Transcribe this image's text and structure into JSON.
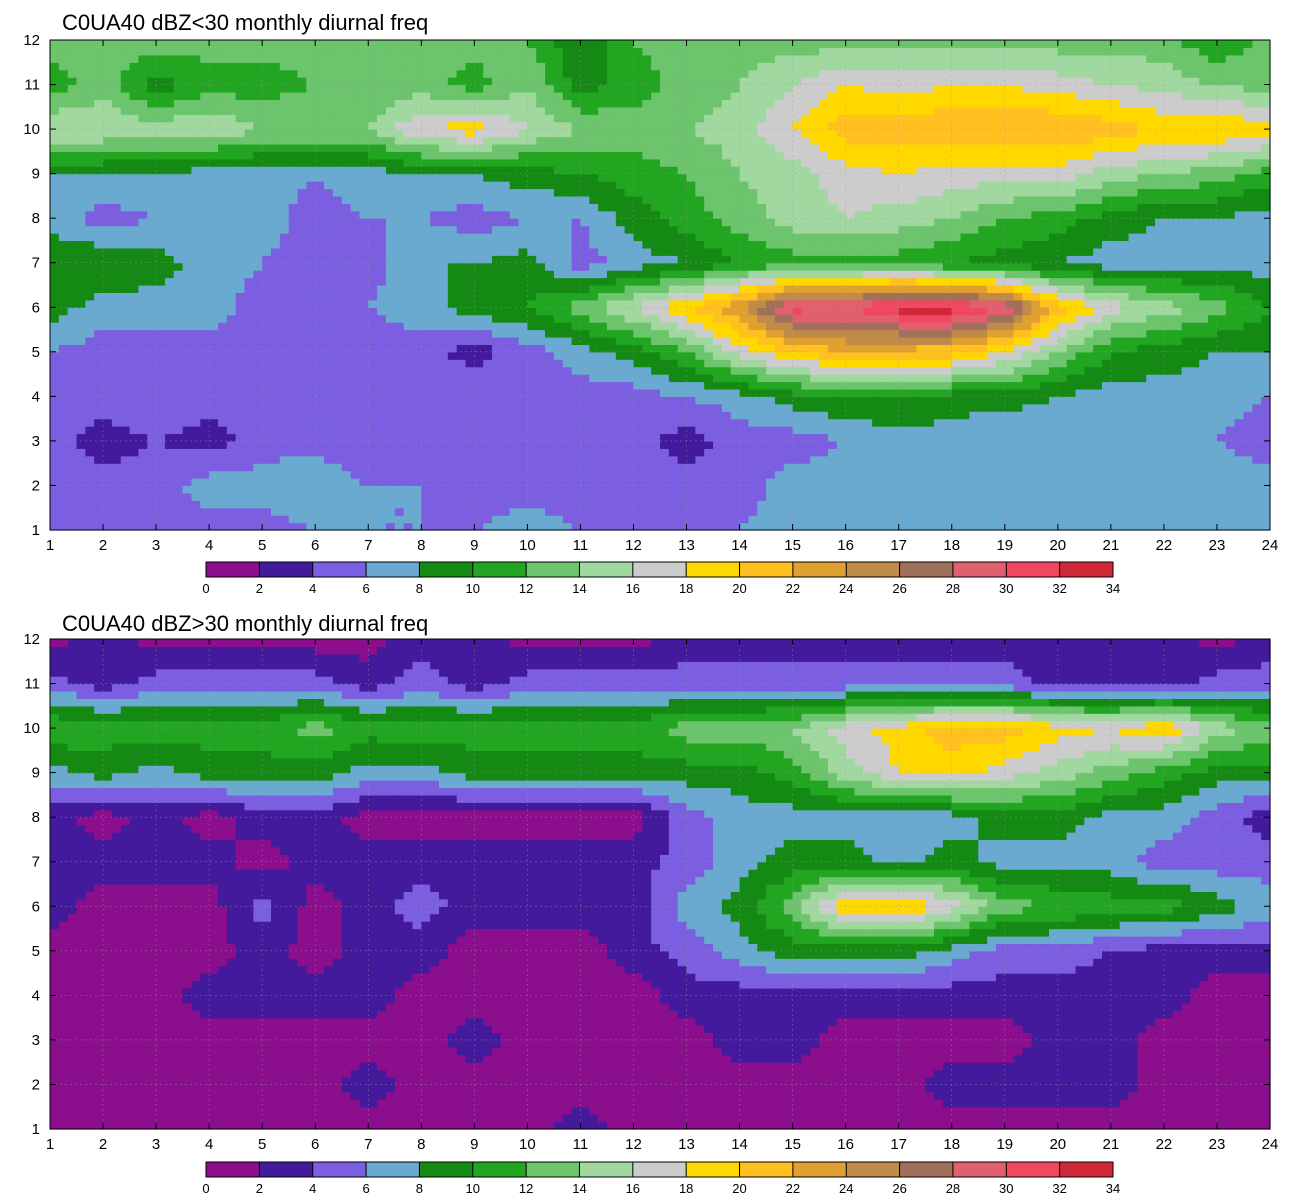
{
  "chart_data": [
    {
      "type": "heatmap",
      "subtype": "filled-contour",
      "title": "C0UA40 dBZ<30 monthly diurnal freq",
      "xlabel": "",
      "ylabel": "",
      "x_ticks": [
        "1",
        "2",
        "3",
        "4",
        "5",
        "6",
        "7",
        "8",
        "9",
        "10",
        "11",
        "12",
        "13",
        "14",
        "15",
        "16",
        "17",
        "18",
        "19",
        "20",
        "21",
        "22",
        "23",
        "24"
      ],
      "y_ticks": [
        "1",
        "2",
        "3",
        "4",
        "5",
        "6",
        "7",
        "8",
        "9",
        "10",
        "11",
        "12"
      ],
      "xlim": [
        1,
        24
      ],
      "ylim": [
        1,
        12
      ],
      "grid": true,
      "rows": [
        {
          "y": 1,
          "values": [
            6,
            6,
            6,
            5,
            5,
            6,
            6,
            6,
            6,
            7,
            6,
            6,
            6,
            6,
            7,
            7,
            6,
            6,
            6,
            6,
            6,
            6,
            6,
            7
          ]
        },
        {
          "y": 2,
          "values": [
            5,
            5,
            5,
            7,
            7,
            8,
            6,
            6,
            5,
            5,
            5,
            5,
            5,
            5,
            7,
            7,
            7,
            7,
            7,
            7,
            7,
            8,
            7,
            7
          ]
        },
        {
          "y": 3,
          "values": [
            5,
            3,
            4,
            3,
            5,
            5,
            4,
            5,
            5,
            5,
            5,
            5,
            3,
            5,
            5,
            6,
            7,
            7,
            6,
            6,
            6,
            6,
            6,
            5
          ]
        },
        {
          "y": 4,
          "values": [
            5,
            5,
            6,
            5,
            6,
            5,
            5,
            5,
            6,
            6,
            5,
            5,
            6,
            7,
            9,
            10,
            10,
            9,
            9,
            8,
            7,
            7,
            7,
            6
          ]
        },
        {
          "y": 5,
          "values": [
            6,
            5,
            5,
            5,
            5,
            5,
            5,
            5,
            3,
            5,
            7,
            9,
            12,
            17,
            20,
            22,
            21,
            21,
            18,
            14,
            10,
            9,
            8,
            8
          ]
        },
        {
          "y": 6,
          "values": [
            9,
            7,
            7,
            7,
            5,
            5,
            6,
            7,
            9,
            10,
            13,
            16,
            20,
            24,
            31,
            30,
            33,
            33,
            30,
            21,
            17,
            15,
            13,
            10
          ]
        },
        {
          "y": 7,
          "values": [
            10,
            10,
            9,
            7,
            6,
            5,
            5,
            8,
            8,
            9,
            5,
            7,
            8,
            10,
            11,
            11,
            11,
            10,
            9,
            8,
            7,
            7,
            7,
            7
          ]
        },
        {
          "y": 8,
          "values": [
            7,
            5,
            6,
            6,
            7,
            5,
            6,
            6,
            5,
            6,
            6,
            9,
            11,
            13,
            15,
            16,
            15,
            14,
            12,
            11,
            9,
            8,
            8,
            7
          ]
        },
        {
          "y": 9,
          "values": [
            8,
            8,
            8,
            7,
            7,
            6,
            7,
            8,
            8,
            9,
            10,
            11,
            12,
            14,
            15,
            17,
            18,
            17,
            17,
            17,
            15,
            14,
            13,
            11
          ]
        },
        {
          "y": 10,
          "values": [
            16,
            16,
            15,
            16,
            14,
            14,
            14,
            18,
            19,
            16,
            14,
            13,
            14,
            15,
            18,
            21,
            21,
            22,
            22,
            22,
            21,
            20,
            20,
            19
          ]
        },
        {
          "y": 11,
          "values": [
            11,
            13,
            9,
            11,
            11,
            12,
            12,
            13,
            11,
            14,
            9,
            11,
            13,
            14,
            16,
            18,
            17,
            18,
            18,
            17,
            16,
            15,
            14,
            13
          ]
        },
        {
          "y": 12,
          "values": [
            13,
            13,
            13,
            13,
            13,
            13,
            13,
            13,
            13,
            12,
            8,
            12,
            13,
            13,
            13,
            13,
            13,
            13,
            13,
            13,
            13,
            13,
            10,
            13
          ]
        }
      ],
      "colorbar": {
        "levels": [
          0,
          2,
          4,
          6,
          8,
          10,
          12,
          14,
          16,
          18,
          20,
          22,
          24,
          26,
          28,
          30,
          32,
          34
        ],
        "tick_labels": [
          "0",
          "2",
          "4",
          "6",
          "8",
          "10",
          "12",
          "14",
          "16",
          "18",
          "20",
          "22",
          "24",
          "26",
          "28",
          "30",
          "32",
          "34"
        ],
        "colors": [
          "#8b0f8c",
          "#441a9c",
          "#7b5fe0",
          "#6aaad0",
          "#148a14",
          "#22a622",
          "#6cc56c",
          "#a0d8a0",
          "#cccccc",
          "#ffd800",
          "#ffc020",
          "#e0a030",
          "#c08a48",
          "#a0705a",
          "#e06070",
          "#f04860",
          "#d02838"
        ]
      }
    },
    {
      "type": "heatmap",
      "subtype": "filled-contour",
      "title": "C0UA40 dBZ>30 monthly diurnal freq",
      "xlabel": "",
      "ylabel": "",
      "x_ticks": [
        "1",
        "2",
        "3",
        "4",
        "5",
        "6",
        "7",
        "8",
        "9",
        "10",
        "11",
        "12",
        "13",
        "14",
        "15",
        "16",
        "17",
        "18",
        "19",
        "20",
        "21",
        "22",
        "23",
        "24"
      ],
      "y_ticks": [
        "1",
        "2",
        "3",
        "4",
        "5",
        "6",
        "7",
        "8",
        "9",
        "10",
        "11",
        "12"
      ],
      "xlim": [
        1,
        24
      ],
      "ylim": [
        1,
        12
      ],
      "grid": true,
      "rows": [
        {
          "y": 1,
          "values": [
            1,
            1,
            1,
            1,
            1,
            1,
            1,
            1,
            1,
            1,
            3,
            1,
            1,
            1,
            1,
            1,
            1,
            1,
            1,
            1,
            1,
            1,
            1,
            1
          ]
        },
        {
          "y": 2,
          "values": [
            1,
            1,
            1,
            1,
            1,
            1,
            3,
            1,
            1,
            1,
            1,
            1,
            1,
            1,
            1,
            1,
            1,
            3,
            3,
            3,
            3,
            1,
            1,
            1
          ]
        },
        {
          "y": 3,
          "values": [
            1,
            1,
            1,
            1,
            1,
            1,
            1,
            1,
            3,
            1,
            1,
            1,
            1,
            3,
            3,
            1,
            1,
            1,
            1,
            3,
            3,
            1,
            1,
            1
          ]
        },
        {
          "y": 4,
          "values": [
            1,
            1,
            1,
            3,
            3,
            3,
            3,
            1,
            1,
            1,
            1,
            1,
            3,
            3,
            3,
            3,
            3,
            3,
            3,
            3,
            3,
            3,
            1,
            1
          ]
        },
        {
          "y": 5,
          "values": [
            1,
            1,
            1,
            1,
            3,
            1,
            3,
            3,
            1,
            1,
            1,
            3,
            5,
            7,
            9,
            9,
            9,
            7,
            5,
            5,
            4,
            3,
            3,
            3
          ]
        },
        {
          "y": 6,
          "values": [
            3,
            1,
            1,
            1,
            5,
            1,
            3,
            5,
            3,
            3,
            3,
            3,
            7,
            9,
            13,
            20,
            21,
            17,
            13,
            12,
            11,
            11,
            9,
            7
          ]
        },
        {
          "y": 7,
          "values": [
            3,
            3,
            3,
            3,
            1,
            3,
            3,
            3,
            3,
            3,
            3,
            3,
            5,
            7,
            9,
            9,
            7,
            9,
            7,
            7,
            7,
            5,
            5,
            5
          ]
        },
        {
          "y": 8,
          "values": [
            3,
            1,
            3,
            1,
            3,
            3,
            1,
            1,
            1,
            1,
            1,
            1,
            5,
            7,
            7,
            7,
            7,
            7,
            9,
            9,
            7,
            7,
            5,
            3
          ]
        },
        {
          "y": 9,
          "values": [
            7,
            9,
            7,
            9,
            9,
            9,
            7,
            7,
            9,
            9,
            9,
            9,
            9,
            9,
            11,
            15,
            18,
            19,
            17,
            15,
            13,
            11,
            9,
            9
          ]
        },
        {
          "y": 10,
          "values": [
            12,
            11,
            11,
            11,
            11,
            13,
            11,
            11,
            11,
            11,
            11,
            11,
            13,
            13,
            14,
            17,
            19,
            21,
            21,
            19,
            18,
            20,
            15,
            13
          ]
        },
        {
          "y": 11,
          "values": [
            5,
            3,
            5,
            5,
            5,
            5,
            3,
            5,
            3,
            5,
            5,
            5,
            5,
            5,
            5,
            5,
            5,
            5,
            5,
            3,
            3,
            3,
            5,
            5
          ]
        },
        {
          "y": 12,
          "values": [
            1,
            3,
            1,
            1,
            1,
            1,
            1,
            3,
            3,
            1,
            1,
            1,
            3,
            3,
            3,
            3,
            3,
            3,
            3,
            3,
            3,
            3,
            1,
            3
          ]
        }
      ],
      "colorbar": {
        "levels": [
          0,
          2,
          4,
          6,
          8,
          10,
          12,
          14,
          16,
          18,
          20,
          22,
          24,
          26,
          28,
          30,
          32,
          34
        ],
        "tick_labels": [
          "0",
          "2",
          "4",
          "6",
          "8",
          "10",
          "12",
          "14",
          "16",
          "18",
          "20",
          "22",
          "24",
          "26",
          "28",
          "30",
          "32",
          "34"
        ],
        "colors": [
          "#8b0f8c",
          "#441a9c",
          "#7b5fe0",
          "#6aaad0",
          "#148a14",
          "#22a622",
          "#6cc56c",
          "#a0d8a0",
          "#cccccc",
          "#ffd800",
          "#ffc020",
          "#e0a030",
          "#c08a48",
          "#a0705a",
          "#e06070",
          "#f04860",
          "#d02838"
        ]
      }
    }
  ]
}
